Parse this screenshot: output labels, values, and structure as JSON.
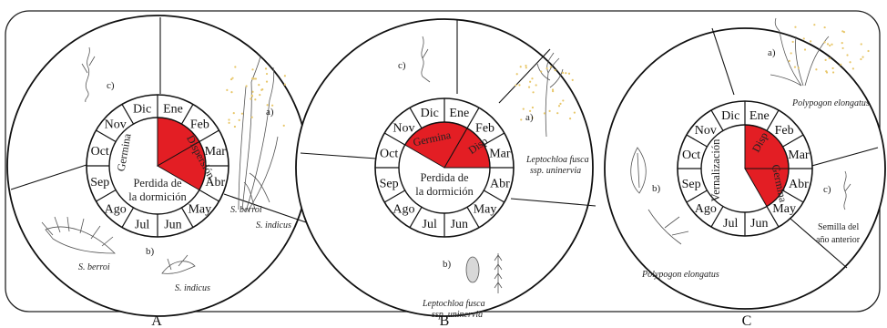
{
  "panels": [
    {
      "id": "A",
      "label": "A",
      "inner_lines": [
        "Perdida de",
        "la dormición"
      ],
      "phase_labels": [
        "Germina",
        "Dispersión"
      ],
      "species": {
        "a": "a)",
        "b": "b)",
        "c": "c)",
        "sp1": "S. berroi",
        "sp2": "S. indicus",
        "sp3": "S. berroi",
        "sp4": "S. indicus"
      }
    },
    {
      "id": "B",
      "label": "B",
      "inner_lines": [
        "Perdida de",
        "la dormición"
      ],
      "phase_labels": [
        "Germina",
        "Disp"
      ],
      "species": {
        "a": "a)",
        "b": "b)",
        "c": "c)",
        "sp1_line1": "Leptochloa fusca",
        "sp1_line2": "ssp. uninervia",
        "sp2_line1": "Leptochloa fusca",
        "sp2_line2": "ssp. uninervia"
      }
    },
    {
      "id": "C",
      "label": "C",
      "inner_lines": [
        "Vernalización"
      ],
      "phase_labels": [
        "Disp",
        "Germina"
      ],
      "species": {
        "a": "a)",
        "b": "b)",
        "c": "c)",
        "sp1": "Polypogon elongatus",
        "sp2": "Polypogon elongatus",
        "note_line1": "Semilla del",
        "note_line2": "año anterior"
      }
    }
  ],
  "months": [
    "Ene",
    "Feb",
    "Mar",
    "Abr",
    "May",
    "Jun",
    "Jul",
    "Ago",
    "Sep",
    "Oct",
    "Nov",
    "Dic"
  ],
  "colors": {
    "highlight": "#e31e24",
    "outline": "#111111"
  }
}
